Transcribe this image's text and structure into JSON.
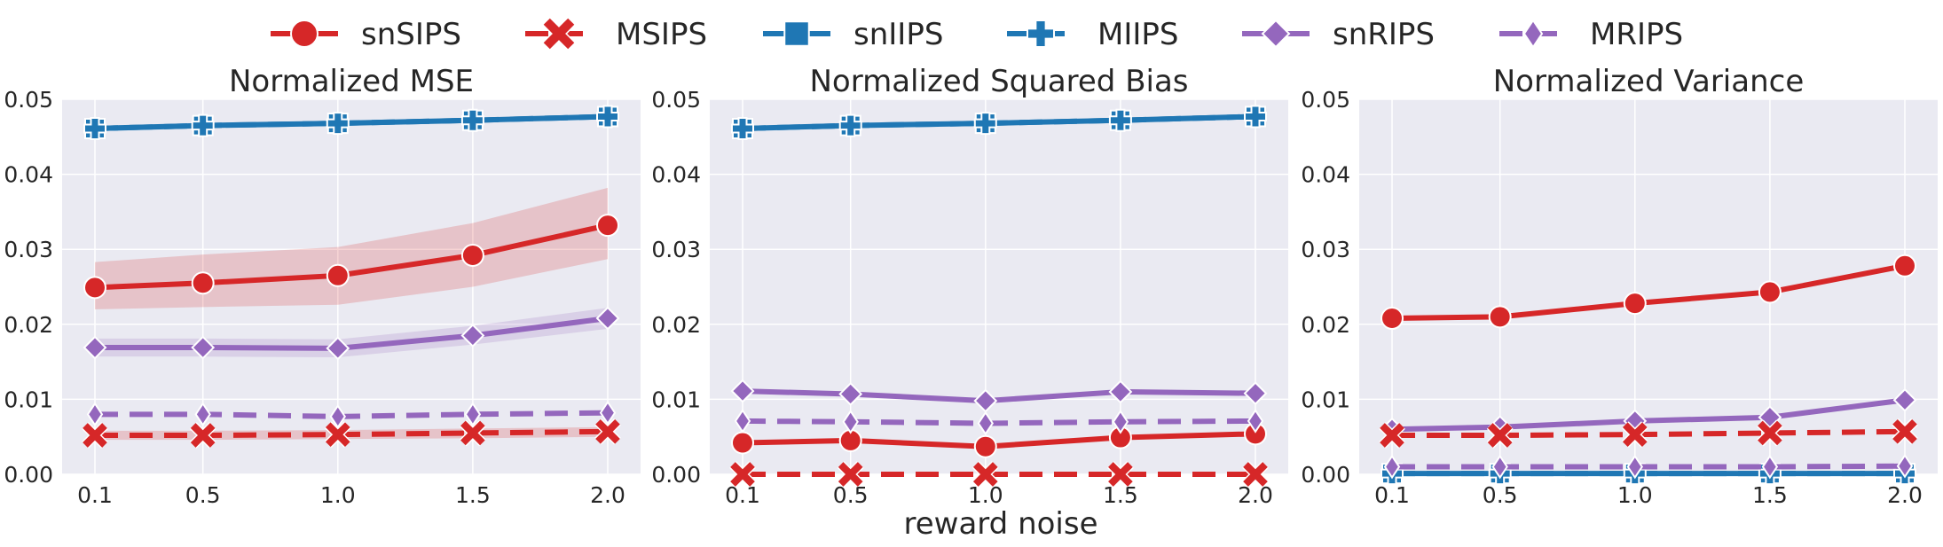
{
  "figure": {
    "xlabel": "reward noise",
    "legend_position": "top-center"
  },
  "chart_data": [
    {
      "type": "line",
      "title": "Normalized MSE",
      "x": [
        0.1,
        0.5,
        1.0,
        1.5,
        2.0
      ],
      "xticks": [
        "0.1",
        "0.5",
        "1.0",
        "1.5",
        "2.0"
      ],
      "ylim": [
        0,
        0.05
      ],
      "yticks": [
        "0.00",
        "0.01",
        "0.02",
        "0.03",
        "0.04",
        "0.05"
      ],
      "grid": true,
      "series": [
        {
          "name": "snSIPS",
          "values": [
            0.0249,
            0.0255,
            0.0265,
            0.0292,
            0.0332
          ],
          "band_lower": [
            0.022,
            0.0223,
            0.0226,
            0.025,
            0.0287
          ],
          "band_upper": [
            0.0283,
            0.0293,
            0.0303,
            0.0335,
            0.0382
          ]
        },
        {
          "name": "MSIPS",
          "values": [
            0.0052,
            0.0052,
            0.0053,
            0.0055,
            0.0057
          ],
          "band_lower": [
            0.0046,
            0.0046,
            0.0047,
            0.0048,
            0.005
          ],
          "band_upper": [
            0.0058,
            0.0058,
            0.0059,
            0.0061,
            0.0063
          ]
        },
        {
          "name": "snIIPS",
          "values": [
            0.0461,
            0.0465,
            0.0468,
            0.0472,
            0.0477
          ]
        },
        {
          "name": "MIIPS",
          "values": [
            0.0461,
            0.0465,
            0.0468,
            0.0472,
            0.0477
          ]
        },
        {
          "name": "snRIPS",
          "values": [
            0.0169,
            0.0169,
            0.0168,
            0.0185,
            0.0208
          ],
          "band_lower": [
            0.0157,
            0.0157,
            0.0156,
            0.0173,
            0.0194
          ],
          "band_upper": [
            0.0181,
            0.0181,
            0.018,
            0.0198,
            0.0222
          ]
        },
        {
          "name": "MRIPS",
          "values": [
            0.008,
            0.008,
            0.0077,
            0.008,
            0.0082
          ]
        }
      ]
    },
    {
      "type": "line",
      "title": "Normalized Squared Bias",
      "x": [
        0.1,
        0.5,
        1.0,
        1.5,
        2.0
      ],
      "xticks": [
        "0.1",
        "0.5",
        "1.0",
        "1.5",
        "2.0"
      ],
      "ylim": [
        0,
        0.05
      ],
      "yticks": [
        "0.00",
        "0.01",
        "0.02",
        "0.03",
        "0.04",
        "0.05"
      ],
      "grid": true,
      "series": [
        {
          "name": "snSIPS",
          "values": [
            0.0042,
            0.0045,
            0.0037,
            0.0049,
            0.0054
          ]
        },
        {
          "name": "MSIPS",
          "values": [
            0.0,
            0.0,
            0.0,
            0.0,
            0.0
          ]
        },
        {
          "name": "snIIPS",
          "values": [
            0.0461,
            0.0465,
            0.0468,
            0.0472,
            0.0477
          ]
        },
        {
          "name": "MIIPS",
          "values": [
            0.0461,
            0.0465,
            0.0468,
            0.0472,
            0.0477
          ]
        },
        {
          "name": "snRIPS",
          "values": [
            0.0111,
            0.0107,
            0.0098,
            0.011,
            0.0108
          ]
        },
        {
          "name": "MRIPS",
          "values": [
            0.0071,
            0.007,
            0.0068,
            0.007,
            0.0071
          ]
        }
      ]
    },
    {
      "type": "line",
      "title": "Normalized Variance",
      "x": [
        0.1,
        0.5,
        1.0,
        1.5,
        2.0
      ],
      "xticks": [
        "0.1",
        "0.5",
        "1.0",
        "1.5",
        "2.0"
      ],
      "ylim": [
        0,
        0.05
      ],
      "yticks": [
        "0.00",
        "0.01",
        "0.02",
        "0.03",
        "0.04",
        "0.05"
      ],
      "grid": true,
      "series": [
        {
          "name": "snSIPS",
          "values": [
            0.0208,
            0.021,
            0.0228,
            0.0243,
            0.0278
          ]
        },
        {
          "name": "MSIPS",
          "values": [
            0.0052,
            0.0052,
            0.0053,
            0.0055,
            0.0057
          ]
        },
        {
          "name": "snIIPS",
          "values": [
            0.0001,
            0.0001,
            0.0001,
            0.0001,
            0.0001
          ]
        },
        {
          "name": "MIIPS",
          "values": [
            0.0001,
            0.0001,
            0.0001,
            0.0001,
            0.0001
          ]
        },
        {
          "name": "snRIPS",
          "values": [
            0.006,
            0.0063,
            0.0071,
            0.0076,
            0.0099
          ]
        },
        {
          "name": "MRIPS",
          "values": [
            0.001,
            0.001,
            0.001,
            0.001,
            0.0011
          ]
        }
      ]
    }
  ],
  "styles": {
    "snSIPS": {
      "color": "#d62728",
      "dash": "solid",
      "marker": "circle"
    },
    "MSIPS": {
      "color": "#d62728",
      "dash": "dashed",
      "marker": "x"
    },
    "snIIPS": {
      "color": "#1f77b4",
      "dash": "solid",
      "marker": "square"
    },
    "MIIPS": {
      "color": "#1f77b4",
      "dash": "dashed",
      "marker": "plus"
    },
    "snRIPS": {
      "color": "#9467bd",
      "dash": "solid",
      "marker": "diamond"
    },
    "MRIPS": {
      "color": "#9467bd",
      "dash": "dashed",
      "marker": "thin-diamond"
    }
  },
  "colors": {
    "plot_background": "#eaeaf2",
    "grid": "#ffffff",
    "text": "#262626"
  }
}
